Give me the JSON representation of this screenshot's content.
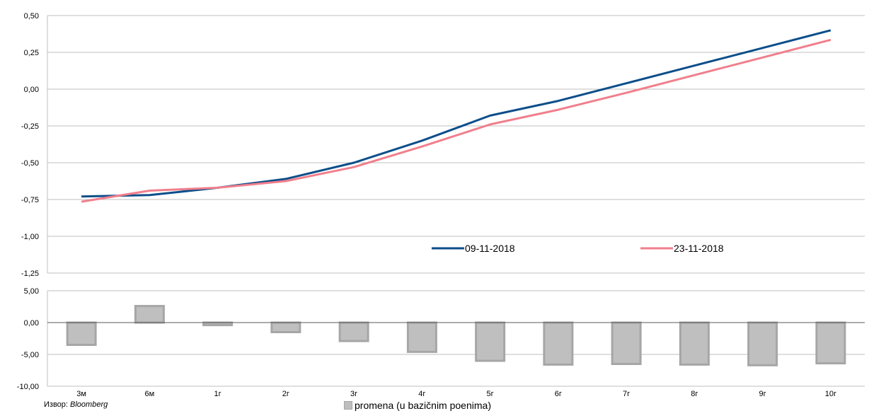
{
  "source": {
    "label": "Извор:",
    "name": "Bloomberg"
  },
  "chart_data": [
    {
      "type": "line",
      "categories": [
        "3м",
        "6м",
        "1г",
        "2г",
        "3г",
        "4г",
        "5г",
        "6г",
        "7г",
        "8г",
        "9г",
        "10г"
      ],
      "ylim": [
        -1.25,
        0.5
      ],
      "y_ticks": [
        "0,50",
        "0,25",
        "0,00",
        "-0,25",
        "-0,50",
        "-0,75",
        "-1,00",
        "-1,25"
      ],
      "y_tick_values": [
        0.5,
        0.25,
        0,
        -0.25,
        -0.5,
        -0.75,
        -1.0,
        -1.25
      ],
      "grid": true,
      "legend_position": "bottom-right",
      "series": [
        {
          "name": "09-11-2018",
          "color": "#0b4e8a",
          "values": [
            -0.73,
            -0.72,
            -0.67,
            -0.61,
            -0.5,
            -0.35,
            -0.18,
            -0.08,
            0.04,
            0.16,
            0.28,
            0.4
          ]
        },
        {
          "name": "23-11-2018",
          "color": "#f07f8c",
          "values": [
            -0.765,
            -0.69,
            -0.67,
            -0.625,
            -0.53,
            -0.39,
            -0.24,
            -0.14,
            -0.025,
            0.095,
            0.215,
            0.335
          ]
        }
      ]
    },
    {
      "type": "bar",
      "categories": [
        "3м",
        "6м",
        "1г",
        "2г",
        "3г",
        "4г",
        "5г",
        "6г",
        "7г",
        "8г",
        "9г",
        "10г"
      ],
      "ylim": [
        -10,
        5
      ],
      "y_ticks": [
        "5,00",
        "0,00",
        "-5,00",
        "-10,00"
      ],
      "y_tick_values": [
        5,
        0,
        -5,
        -10
      ],
      "grid": true,
      "series": [
        {
          "name": "promena (u bazičnim poenima)",
          "color": "#bfbfbf",
          "values": [
            -3.5,
            2.6,
            -0.4,
            -1.5,
            -2.9,
            -4.6,
            -6.0,
            -6.6,
            -6.5,
            -6.6,
            -6.7,
            -6.4
          ]
        }
      ]
    }
  ]
}
